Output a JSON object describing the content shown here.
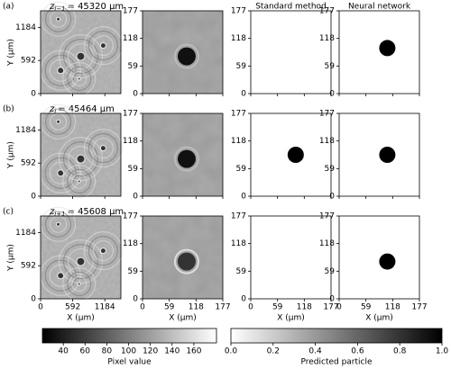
{
  "rows": [
    {
      "label": "(a)",
      "z_symbol": "z",
      "z_subscript": "i−1",
      "z_value": "= 45320 μm"
    },
    {
      "label": "(b)",
      "z_symbol": "z",
      "z_subscript": "i",
      "z_value": "= 45464 μm"
    },
    {
      "label": "(c)",
      "z_symbol": "z",
      "z_subscript": "i+1",
      "z_value": "= 45608 μm"
    }
  ],
  "column_titles": {
    "standard": "Standard method",
    "neural": "Neural network"
  },
  "hologram_axes": {
    "ticks": [
      "0",
      "592",
      "1184"
    ],
    "ylabel": "Y (μm)",
    "xlabel": "X (μm)"
  },
  "crop_axes": {
    "ticks": [
      "0",
      "59",
      "118",
      "177"
    ],
    "xlabel": "X (μm)"
  },
  "colorbars": [
    {
      "label": "Pixel value",
      "ticks": [
        "40",
        "60",
        "80",
        "100",
        "120",
        "140",
        "160"
      ]
    },
    {
      "label": "Predicted particle",
      "ticks": [
        "0.0",
        "0.2",
        "0.4",
        "0.6",
        "0.8",
        "1.0"
      ]
    }
  ]
}
